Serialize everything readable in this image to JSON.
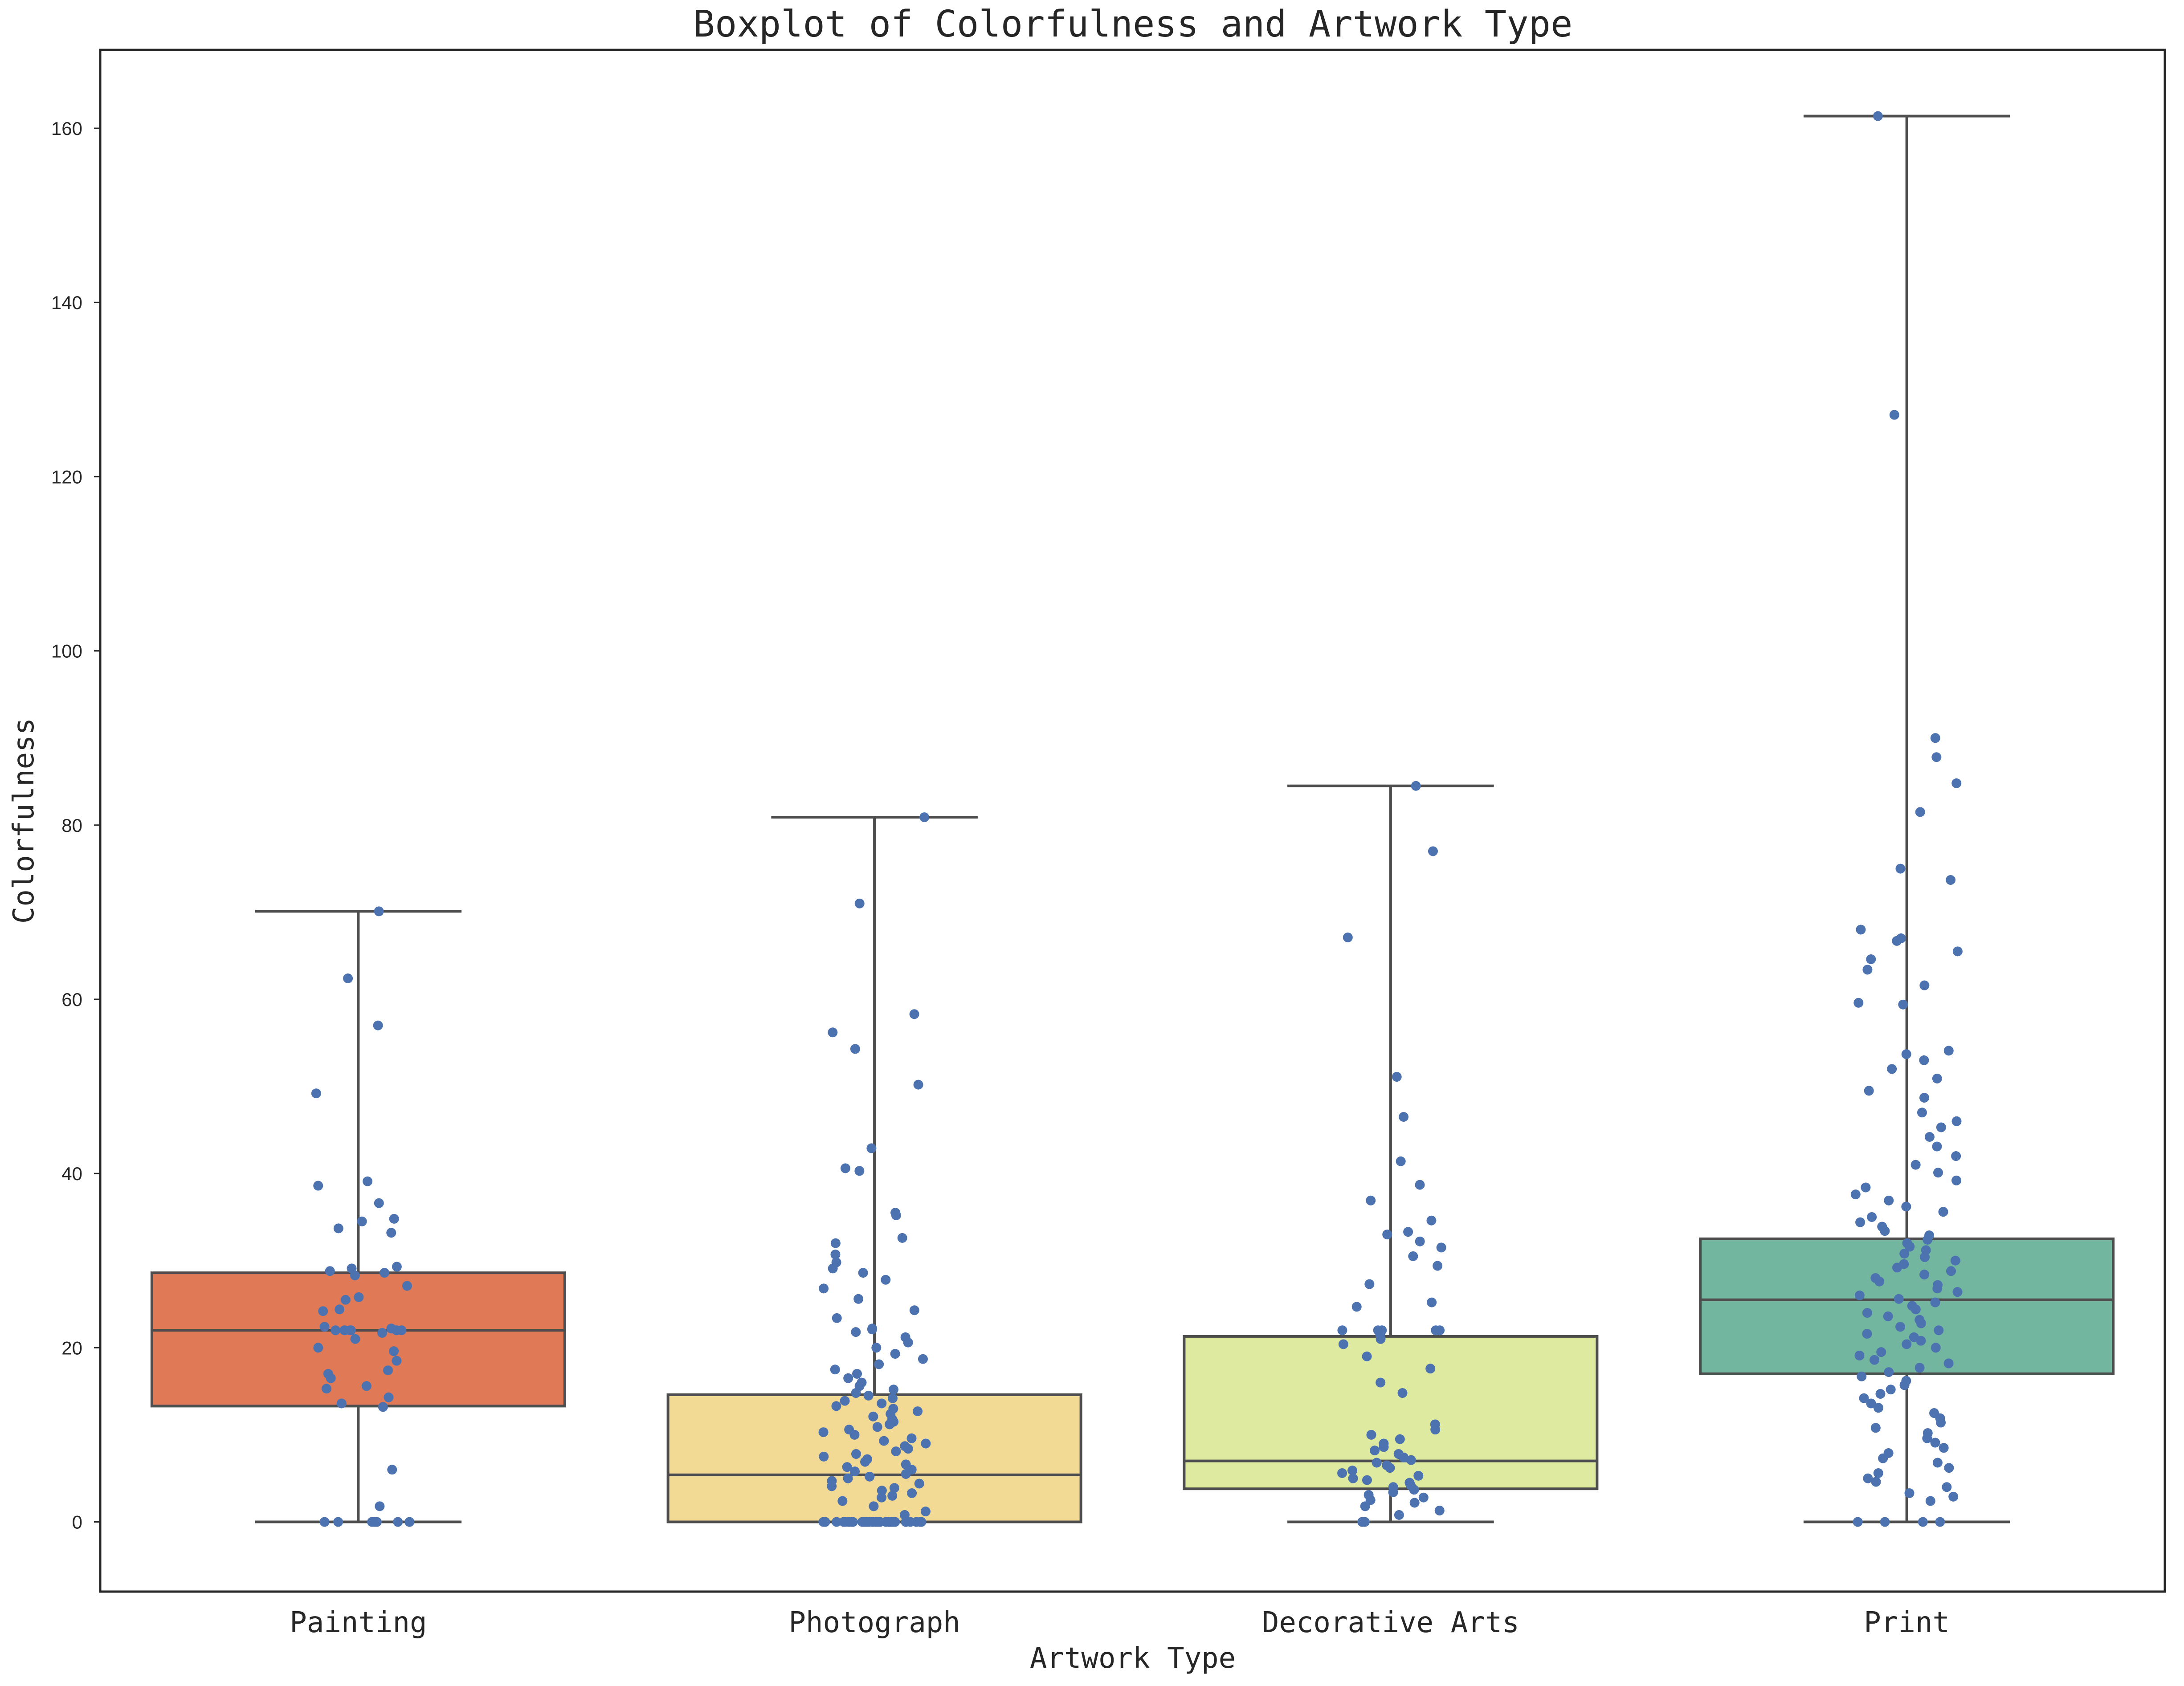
{
  "chart_data": {
    "type": "box",
    "title": "Boxplot of Colorfulness and Artwork Type",
    "xlabel": "Artwork Type",
    "ylabel": "Colorfulness",
    "ylim": [
      -8,
      169
    ],
    "yticks": [
      0,
      20,
      40,
      60,
      80,
      100,
      120,
      140,
      160
    ],
    "grid": false,
    "legend": "none",
    "point_color": "#4c72b0",
    "categories": [
      "Painting",
      "Photograph",
      "Decorative Arts",
      "Print"
    ],
    "boxes": [
      {
        "name": "Painting",
        "color": "#e07a56",
        "min": 0,
        "q1": 13.3,
        "median": 22.0,
        "q3": 28.6,
        "max": 70.1
      },
      {
        "name": "Photograph",
        "color": "#f2d994",
        "min": 0,
        "q1": 0,
        "median": 5.4,
        "q3": 14.6,
        "max": 80.9
      },
      {
        "name": "Decorative Arts",
        "color": "#deea9f",
        "min": 0,
        "q1": 3.8,
        "median": 7.0,
        "q3": 21.3,
        "max": 84.5
      },
      {
        "name": "Print",
        "color": "#73b6a0",
        "min": 0,
        "q1": 17.0,
        "median": 25.5,
        "q3": 32.5,
        "max": 161.4
      }
    ],
    "points": [
      {
        "name": "Painting",
        "values": [
          0,
          0,
          0,
          0,
          0,
          0,
          0,
          0,
          1.8,
          6.0,
          13.2,
          13.6,
          14.3,
          15.3,
          15.6,
          16.5,
          17.0,
          17.4,
          18.5,
          19.6,
          20.0,
          21.0,
          21.7,
          22.0,
          22.0,
          22.0,
          22.0,
          22.0,
          22.0,
          22.0,
          22.2,
          22.4,
          24.2,
          24.4,
          25.5,
          25.8,
          27.1,
          28.3,
          28.6,
          28.8,
          29.1,
          29.3,
          33.2,
          33.7,
          34.5,
          34.8,
          36.6,
          38.6,
          39.1,
          49.2,
          57.0,
          62.4,
          70.1
        ]
      },
      {
        "name": "Photograph",
        "values": [
          0,
          0,
          0,
          0,
          0,
          0,
          0,
          0,
          0,
          0,
          0,
          0,
          0,
          0,
          0,
          0,
          0,
          0,
          0,
          0,
          0,
          0,
          0,
          0,
          0,
          0,
          0,
          0,
          0,
          0,
          0,
          0,
          0,
          0,
          0,
          0,
          0,
          0,
          0,
          0,
          0.8,
          1.2,
          1.8,
          2.4,
          2.8,
          3.0,
          3.3,
          3.6,
          3.9,
          4.1,
          4.4,
          4.7,
          5.0,
          5.2,
          5.5,
          5.8,
          6.0,
          6.3,
          6.6,
          6.9,
          7.2,
          7.5,
          7.8,
          8.1,
          8.4,
          8.7,
          9.0,
          9.3,
          9.6,
          10.0,
          10.3,
          10.6,
          10.9,
          11.2,
          11.5,
          11.8,
          12.1,
          12.4,
          12.7,
          13.0,
          13.3,
          13.6,
          13.9,
          14.2,
          14.5,
          14.8,
          15.2,
          15.6,
          16.0,
          16.5,
          17.0,
          17.5,
          18.1,
          18.7,
          19.3,
          20.0,
          20.6,
          21.2,
          21.8,
          22.1,
          22.2,
          23.4,
          24.3,
          25.6,
          26.8,
          27.8,
          28.6,
          29.1,
          29.8,
          30.7,
          32.0,
          32.6,
          35.2,
          35.5,
          40.3,
          40.6,
          42.9,
          50.2,
          54.3,
          56.2,
          58.3,
          71.0,
          80.9
        ]
      },
      {
        "name": "Decorative Arts",
        "values": [
          0,
          0,
          0.8,
          1.3,
          1.8,
          2.2,
          2.5,
          2.8,
          3.1,
          3.4,
          3.7,
          4.0,
          4.2,
          4.5,
          4.8,
          5.0,
          5.3,
          5.6,
          5.9,
          6.2,
          6.5,
          6.8,
          7.1,
          7.4,
          7.8,
          8.2,
          8.6,
          9.0,
          9.5,
          10.0,
          10.6,
          11.2,
          14.8,
          16.0,
          17.6,
          19.0,
          20.4,
          21.0,
          21.5,
          22.0,
          22.0,
          22.0,
          22.0,
          22.0,
          24.7,
          25.2,
          27.3,
          29.4,
          30.5,
          31.5,
          32.2,
          33.0,
          33.3,
          34.6,
          36.9,
          38.7,
          41.4,
          46.5,
          51.1,
          67.1,
          77.0,
          84.5
        ]
      },
      {
        "name": "Print",
        "values": [
          0,
          0,
          0,
          0,
          2.4,
          2.9,
          3.3,
          4.0,
          4.6,
          5.0,
          5.6,
          6.2,
          6.8,
          7.3,
          7.9,
          8.5,
          9.1,
          9.6,
          10.2,
          10.8,
          11.4,
          11.9,
          12.5,
          13.1,
          13.6,
          14.2,
          14.7,
          15.2,
          15.7,
          16.2,
          16.7,
          17.2,
          17.7,
          18.2,
          18.6,
          19.1,
          19.5,
          20.0,
          20.4,
          20.8,
          21.2,
          21.6,
          22.0,
          22.4,
          22.8,
          23.2,
          23.6,
          24.0,
          24.4,
          24.8,
          25.2,
          25.6,
          26.0,
          26.4,
          26.8,
          27.2,
          27.6,
          28.0,
          28.4,
          28.8,
          29.2,
          29.6,
          30.0,
          30.4,
          30.8,
          31.2,
          31.6,
          32.0,
          32.4,
          32.9,
          33.4,
          33.9,
          34.4,
          35.0,
          35.6,
          36.2,
          36.9,
          37.6,
          38.4,
          39.2,
          40.1,
          41.0,
          42.0,
          43.1,
          44.2,
          45.3,
          46.0,
          47.0,
          48.7,
          49.5,
          50.9,
          52.0,
          53.0,
          53.7,
          54.1,
          59.4,
          59.6,
          61.6,
          63.4,
          64.6,
          65.5,
          66.7,
          67.0,
          68.0,
          73.7,
          75.0,
          81.5,
          84.8,
          87.8,
          90.0,
          127.1,
          161.4
        ]
      }
    ]
  }
}
